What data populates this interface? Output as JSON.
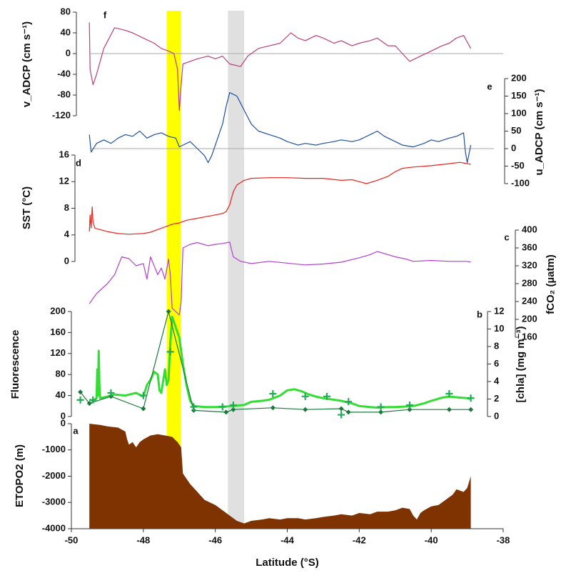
{
  "chart_data": [
    {
      "type": "line",
      "label": "f",
      "ylabel": "v_ADCP (cm s⁻¹)",
      "xlim": [
        -50,
        -38
      ],
      "ylim": [
        -120,
        80
      ],
      "yticks": [
        80,
        40,
        0,
        -40,
        -80,
        -120
      ],
      "zero_line": true,
      "series": [
        {
          "color": "#b8407a",
          "axis": "y",
          "x": [
            -49.5,
            -49.48,
            -49.4,
            -49.3,
            -49.1,
            -48.8,
            -48.5,
            -48.3,
            -48,
            -47.7,
            -47.5,
            -47.3,
            -47.15,
            -47.05,
            -47.0,
            -46.95,
            -46.9,
            -46.7,
            -46.5,
            -46.2,
            -46,
            -45.8,
            -45.6,
            -45.3,
            -45.1,
            -44.8,
            -44.5,
            -44.2,
            -43.9,
            -43.7,
            -43.5,
            -43.2,
            -43,
            -42.7,
            -42.5,
            -42.2,
            -42,
            -41.7,
            -41.5,
            -41.2,
            -41,
            -40.8,
            -40.6,
            -40.3,
            -40,
            -39.7,
            -39.5,
            -39.3,
            -39.1,
            -38.9
          ],
          "values": [
            60,
            -30,
            -60,
            -40,
            10,
            50,
            45,
            40,
            30,
            20,
            10,
            5,
            0,
            -30,
            -110,
            -60,
            -20,
            -15,
            -10,
            -5,
            -10,
            -5,
            -20,
            -25,
            -5,
            10,
            15,
            20,
            40,
            30,
            25,
            35,
            30,
            20,
            25,
            15,
            20,
            25,
            30,
            15,
            15,
            0,
            -15,
            -5,
            5,
            15,
            20,
            30,
            35,
            10
          ]
        }
      ]
    },
    {
      "type": "line",
      "label": "e",
      "y2label": "u_ADCP (cm s⁻¹)",
      "xlim": [
        -50,
        -38
      ],
      "y2lim": [
        -100,
        200
      ],
      "y2ticks": [
        200,
        150,
        100,
        50,
        0,
        -50,
        -100
      ],
      "zero_line": true,
      "series": [
        {
          "color": "#1f4fa0",
          "axis": "y2",
          "x": [
            -49.5,
            -49.45,
            -49.3,
            -49.1,
            -48.9,
            -48.7,
            -48.5,
            -48.3,
            -48.1,
            -47.9,
            -47.7,
            -47.5,
            -47.3,
            -47.1,
            -47,
            -46.9,
            -46.7,
            -46.5,
            -46.3,
            -46.2,
            -46.1,
            -46,
            -45.9,
            -45.8,
            -45.7,
            -45.6,
            -45.5,
            -45.4,
            -45.3,
            -45.2,
            -45,
            -44.8,
            -44.5,
            -44.2,
            -44,
            -43.7,
            -43.5,
            -43.2,
            -43,
            -42.7,
            -42.5,
            -42.2,
            -42,
            -41.7,
            -41.5,
            -41.3,
            -41,
            -40.8,
            -40.5,
            -40.2,
            -40,
            -39.8,
            -39.5,
            -39.3,
            -39.1,
            -39.05,
            -39,
            -38.9
          ],
          "values": [
            40,
            -10,
            15,
            25,
            15,
            30,
            40,
            35,
            50,
            30,
            40,
            45,
            35,
            30,
            5,
            10,
            20,
            0,
            -20,
            -40,
            -20,
            10,
            40,
            70,
            120,
            160,
            155,
            150,
            130,
            110,
            70,
            50,
            40,
            30,
            20,
            10,
            15,
            10,
            15,
            20,
            25,
            20,
            25,
            40,
            50,
            35,
            20,
            10,
            5,
            15,
            25,
            20,
            30,
            35,
            45,
            -10,
            -40,
            10
          ]
        }
      ]
    },
    {
      "type": "line",
      "label": "d",
      "ylabel": "SST (°C)",
      "xlim": [
        -50,
        -38
      ],
      "ylim": [
        0,
        16
      ],
      "yticks": [
        16,
        12,
        8,
        4,
        0
      ],
      "series": [
        {
          "color": "#e8231c",
          "axis": "y",
          "x": [
            -49.5,
            -49.48,
            -49.45,
            -49.42,
            -49.4,
            -49.35,
            -49.2,
            -49,
            -48.7,
            -48.4,
            -48,
            -47.8,
            -47.6,
            -47.4,
            -47.2,
            -47,
            -46.8,
            -46.5,
            -46.2,
            -46,
            -45.8,
            -45.7,
            -45.6,
            -45.5,
            -45.4,
            -45.2,
            -45,
            -44.5,
            -44,
            -43.5,
            -43,
            -42.5,
            -42.2,
            -42,
            -41.8,
            -41.5,
            -41.2,
            -41,
            -40.8,
            -40.5,
            -40,
            -39.5,
            -39.2,
            -38.9
          ],
          "values": [
            4.5,
            7,
            5,
            8.2,
            6,
            5,
            4.8,
            4.5,
            4.2,
            4.1,
            4.2,
            4.4,
            4.8,
            5.2,
            5.6,
            5.8,
            6.2,
            6.5,
            6.8,
            7,
            7.2,
            7.5,
            8.5,
            10.5,
            11.5,
            12.2,
            12.5,
            12.6,
            12.6,
            12.5,
            12.5,
            12.2,
            12.3,
            12,
            11.7,
            12.2,
            12.8,
            13.5,
            14,
            14.2,
            14.4,
            14.7,
            14.9,
            14.6
          ]
        }
      ]
    },
    {
      "type": "line",
      "label": "c",
      "y2label": "fCO₂ (µatm)",
      "xlim": [
        -50,
        -38
      ],
      "y2lim": [
        160,
        400
      ],
      "y2ticks": [
        400,
        360,
        320,
        280,
        240,
        200,
        160
      ],
      "series": [
        {
          "color": "#b040d0",
          "axis": "y2",
          "x": [
            -49.5,
            -49.3,
            -49,
            -48.8,
            -48.6,
            -48.4,
            -48.2,
            -48,
            -47.9,
            -47.8,
            -47.6,
            -47.5,
            -47.4,
            -47.3,
            -47.25,
            -47.2,
            -47,
            -46.95,
            -46.9,
            -46.7,
            -46.5,
            -46.2,
            -46,
            -45.8,
            -45.6,
            -45.5,
            -45.3,
            -45,
            -44.5,
            -44,
            -43.5,
            -43,
            -42.5,
            -42,
            -41.7,
            -41.5,
            -41.2,
            -41,
            -40.7,
            -40.5,
            -40,
            -39.5,
            -39,
            -38.9
          ],
          "values": [
            235,
            258,
            280,
            300,
            340,
            336,
            320,
            325,
            290,
            340,
            300,
            315,
            290,
            335,
            300,
            225,
            210,
            240,
            360,
            368,
            372,
            365,
            368,
            370,
            373,
            340,
            330,
            325,
            330,
            326,
            322,
            324,
            328,
            338,
            345,
            352,
            345,
            340,
            335,
            330,
            332,
            330,
            330,
            328
          ]
        }
      ]
    },
    {
      "type": "line",
      "label": "b",
      "ylabel": "Fluorescence",
      "y2label": "[chla] (mg m⁻³)",
      "xlim": [
        -50,
        -38
      ],
      "ylim": [
        0,
        200
      ],
      "yticks": [
        200,
        160,
        120,
        80,
        40,
        0
      ],
      "y2lim": [
        0,
        12
      ],
      "y2ticks": [
        12,
        10,
        8,
        6,
        4,
        2,
        0
      ],
      "series": [
        {
          "color": "#33dd33",
          "axis": "y",
          "width": 3,
          "x": [
            -49.5,
            -49.4,
            -49.3,
            -49.28,
            -49.26,
            -49.24,
            -49.22,
            -49.2,
            -49,
            -48.8,
            -48.5,
            -48.2,
            -48,
            -47.9,
            -47.8,
            -47.7,
            -47.6,
            -47.55,
            -47.5,
            -47.4,
            -47.35,
            -47.3,
            -47.25,
            -47.2,
            -47.1,
            -47,
            -46.9,
            -46.8,
            -46.7,
            -46.6,
            -46.3,
            -46,
            -45.7,
            -45.5,
            -45.2,
            -45,
            -44.7,
            -44.5,
            -44.2,
            -44,
            -43.8,
            -43.6,
            -43.4,
            -43.2,
            -43,
            -42.7,
            -42.5,
            -42.2,
            -42,
            -41.7,
            -41.5,
            -41.2,
            -41,
            -40.7,
            -40.5,
            -40.2,
            -40,
            -39.7,
            -39.5,
            -39.2,
            -39,
            -38.9
          ],
          "values": [
            32,
            30,
            35,
            90,
            40,
            125,
            60,
            35,
            38,
            42,
            40,
            45,
            38,
            60,
            70,
            85,
            80,
            50,
            45,
            90,
            60,
            70,
            140,
            190,
            170,
            150,
            100,
            60,
            30,
            20,
            18,
            18,
            19,
            20,
            22,
            28,
            30,
            32,
            40,
            50,
            52,
            48,
            42,
            38,
            35,
            32,
            30,
            25,
            20,
            18,
            17,
            18,
            18,
            19,
            20,
            25,
            30,
            36,
            38,
            36,
            35,
            34
          ]
        },
        {
          "color": "#1a7a3a",
          "axis": "y2",
          "width": 1.2,
          "marker": "diamond",
          "x": [
            -49.75,
            -49.5,
            -48.9,
            -48,
            -47.3,
            -46.6,
            -45.7,
            -45.5,
            -44.4,
            -43.5,
            -42.5,
            -42.3,
            -41.4,
            -40.6,
            -39.5,
            -38.9
          ],
          "values": [
            2.8,
            1.5,
            2.3,
            0.9,
            12,
            0.7,
            0.5,
            0.8,
            1,
            0.8,
            0.9,
            0.5,
            0.5,
            0.8,
            0.8,
            0.8
          ]
        },
        {
          "color": "#22aa55",
          "axis": "y2",
          "line": false,
          "marker": "plus",
          "x": [
            -49.75,
            -49.4,
            -48.9,
            -48,
            -47.25,
            -46.6,
            -45.8,
            -45.5,
            -44.4,
            -43.5,
            -42.9,
            -42.5,
            -42.3,
            -41.4,
            -40.6,
            -39.5,
            -38.9
          ],
          "values": [
            1.9,
            1.9,
            2.7,
            2.4,
            7.4,
            1.1,
            1.1,
            1.3,
            2.6,
            2.3,
            2.3,
            0.2,
            1.7,
            1.1,
            1.3,
            2.6,
            2.1
          ]
        }
      ]
    },
    {
      "type": "area",
      "label": "a",
      "ylabel": "ETOPO2 (m)",
      "xlabel": "Latitude (°S)",
      "xlim": [
        -50,
        -38
      ],
      "xticks": [
        -50,
        -48,
        -46,
        -44,
        -42,
        -40,
        -38
      ],
      "ylim": [
        -4000,
        0
      ],
      "yticks": [
        0,
        -1000,
        -2000,
        -3000,
        -4000
      ],
      "bands": [
        {
          "xlim": [
            -47.35,
            -46.95
          ],
          "color": "#ffff00"
        },
        {
          "xlim": [
            -45.65,
            -45.2
          ],
          "color": "#e0e0e0"
        }
      ],
      "series": [
        {
          "color": "#7f3300",
          "axis": "y",
          "x": [
            -49.5,
            -49.2,
            -49,
            -48.7,
            -48.5,
            -48.45,
            -48.4,
            -48.3,
            -48.2,
            -48.1,
            -48,
            -47.8,
            -47.6,
            -47.4,
            -47.2,
            -47.05,
            -46.95,
            -46.9,
            -46.7,
            -46.5,
            -46.3,
            -46,
            -45.8,
            -45.6,
            -45.4,
            -45.2,
            -45,
            -44.7,
            -44.5,
            -44.2,
            -44,
            -43.7,
            -43.5,
            -43.2,
            -43,
            -42.7,
            -42.5,
            -42.2,
            -42,
            -41.7,
            -41.5,
            -41.2,
            -41,
            -40.8,
            -40.6,
            -40.5,
            -40.4,
            -40.3,
            -40.2,
            -40,
            -39.8,
            -39.6,
            -39.4,
            -39.3,
            -39.1,
            -39,
            -38.9
          ],
          "values": [
            0,
            -50,
            -100,
            -150,
            -300,
            -600,
            -800,
            -700,
            -900,
            -700,
            -600,
            -450,
            -400,
            -450,
            -500,
            -700,
            -900,
            -1900,
            -2300,
            -2600,
            -2900,
            -3100,
            -3300,
            -3500,
            -3700,
            -3800,
            -3700,
            -3650,
            -3600,
            -3650,
            -3600,
            -3600,
            -3650,
            -3600,
            -3550,
            -3500,
            -3450,
            -3500,
            -3400,
            -3450,
            -3350,
            -3350,
            -3300,
            -3200,
            -3250,
            -3500,
            -3650,
            -3400,
            -3300,
            -3150,
            -3100,
            -2900,
            -2700,
            -2500,
            -2600,
            -2450,
            -2000
          ]
        }
      ]
    }
  ]
}
